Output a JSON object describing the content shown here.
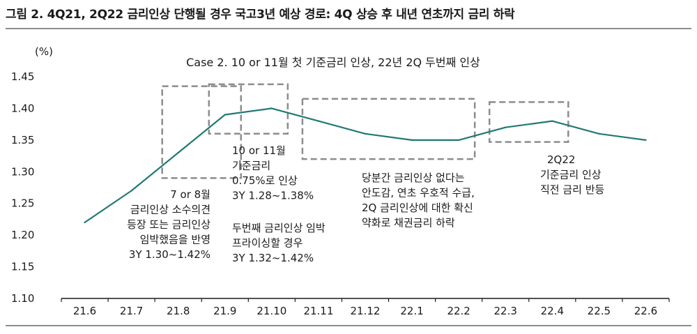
{
  "figure": {
    "title": "그림 2. 4Q21, 2Q22 금리인상 단행될 경우 국고3년 예상 경로: 4Q 상승 후 내년 연초까지 금리 하락"
  },
  "chart_data": {
    "type": "line",
    "title": "Case 2. 10 or 11월 첫 기준금리 인상, 22년 2Q 두번째 인상",
    "unit_label": "(%)",
    "ylim": [
      1.1,
      1.45
    ],
    "yticks": [
      "1.10",
      "1.15",
      "1.20",
      "1.25",
      "1.30",
      "1.35",
      "1.40",
      "1.45"
    ],
    "categories": [
      "21.6",
      "21.7",
      "21.8",
      "21.9",
      "21.10",
      "21.11",
      "21.12",
      "22.1",
      "22.2",
      "22.3",
      "22.4",
      "22.5",
      "22.6"
    ],
    "series": [
      {
        "values": [
          1.22,
          1.27,
          1.33,
          1.39,
          1.4,
          1.38,
          1.36,
          1.35,
          1.35,
          1.37,
          1.38,
          1.36,
          1.35
        ]
      }
    ],
    "line_color": "#1f7a72",
    "box_color": "#8c8c8c",
    "highlight_boxes": [
      {
        "x_from": "21.8",
        "x_to": "21.9",
        "y_from": 1.29,
        "y_to": 1.435
      },
      {
        "x_from": "21.9",
        "x_to": "21.10",
        "y_from": 1.36,
        "y_to": 1.438
      },
      {
        "x_from": "21.11",
        "x_to": "22.2",
        "y_from": 1.32,
        "y_to": 1.415
      },
      {
        "x_from": "22.3",
        "x_to": "22.4",
        "y_from": 1.347,
        "y_to": 1.41
      }
    ],
    "annotations": [
      {
        "lines": [
          "7 or 8월",
          "금리인상 소수의견",
          "등장 또는 금리인상",
          "임박했음을 반영",
          "3Y 1.30~1.42%"
        ]
      },
      {
        "lines": [
          "10 or 11월",
          "기준금리",
          "0.75%로 인상",
          "3Y 1.28~1.38%"
        ]
      },
      {
        "lines": [
          "두번째 금리인상 임박",
          "프라이싱할 경우",
          "3Y 1.32~1.42%"
        ]
      },
      {
        "lines": [
          "당분간 금리인상 없다는",
          "안도감, 연초 우호적 수급,",
          "2Q 금리인상에 대한 확신",
          "약화로 채권금리 하락"
        ]
      },
      {
        "lines": [
          "2Q22",
          "기준금리 인상",
          "직전 금리 반등"
        ]
      }
    ]
  }
}
